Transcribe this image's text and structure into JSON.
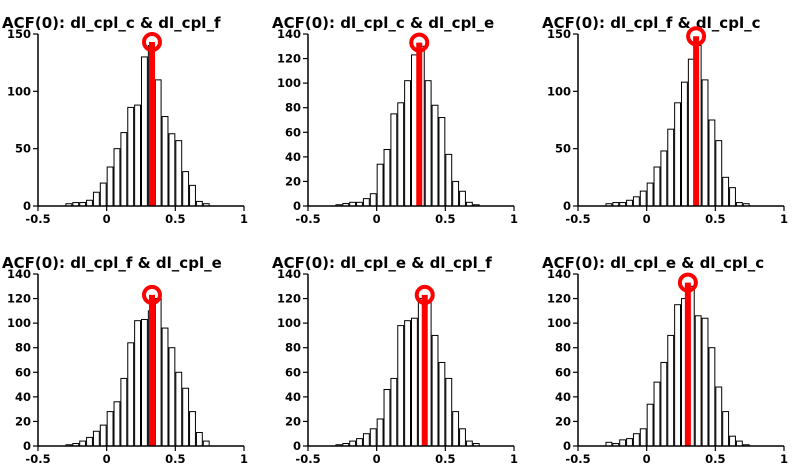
{
  "figure": {
    "colors": {
      "bars": "#ffffff",
      "bar_outline": "#000000",
      "marker": "#ff0000"
    }
  },
  "chart_data": [
    {
      "type": "bar",
      "title": "ACF(0): dl_cpl_c & dl_cpl_f",
      "xlim": [
        -0.5,
        1
      ],
      "ylim": [
        0,
        150
      ],
      "xticks": [
        "-0.5",
        "0",
        "0.5",
        "1"
      ],
      "yticks": [
        "0",
        "50",
        "100",
        "150"
      ],
      "bin_width": 0.05,
      "bin_centers": [
        -0.275,
        -0.225,
        -0.175,
        -0.125,
        -0.075,
        -0.025,
        0.025,
        0.075,
        0.125,
        0.175,
        0.225,
        0.275,
        0.325,
        0.375,
        0.425,
        0.475,
        0.525,
        0.575,
        0.625,
        0.675,
        0.725
      ],
      "values": [
        2,
        3,
        3,
        5,
        12,
        20,
        34,
        50,
        64,
        86,
        88,
        130,
        140,
        110,
        78,
        63,
        57,
        30,
        18,
        4,
        2
      ],
      "marker": {
        "x": 0.33,
        "y": 143
      }
    },
    {
      "type": "bar",
      "title": "ACF(0): dl_cpl_c & dl_cpl_e",
      "xlim": [
        -0.5,
        1
      ],
      "ylim": [
        0,
        140
      ],
      "xticks": [
        "-0.5",
        "0",
        "0.5",
        "1"
      ],
      "yticks": [
        "0",
        "20",
        "40",
        "60",
        "80",
        "100",
        "120",
        "140"
      ],
      "bin_width": 0.05,
      "bin_centers": [
        -0.275,
        -0.225,
        -0.175,
        -0.125,
        -0.075,
        -0.025,
        0.025,
        0.075,
        0.125,
        0.175,
        0.225,
        0.275,
        0.325,
        0.375,
        0.425,
        0.475,
        0.525,
        0.575,
        0.625,
        0.675,
        0.725
      ],
      "values": [
        1,
        2,
        3,
        3,
        6,
        10,
        34,
        46,
        75,
        84,
        102,
        123,
        130,
        102,
        82,
        72,
        42,
        20,
        12,
        3,
        1
      ],
      "marker": {
        "x": 0.31,
        "y": 133
      }
    },
    {
      "type": "bar",
      "title": "ACF(0): dl_cpl_f & dl_cpl_c",
      "xlim": [
        -0.5,
        1
      ],
      "ylim": [
        0,
        150
      ],
      "xticks": [
        "-0.5",
        "0",
        "0.5",
        "1"
      ],
      "yticks": [
        "0",
        "50",
        "100",
        "150"
      ],
      "bin_width": 0.05,
      "bin_centers": [
        -0.275,
        -0.225,
        -0.175,
        -0.125,
        -0.075,
        -0.025,
        0.025,
        0.075,
        0.125,
        0.175,
        0.225,
        0.275,
        0.325,
        0.375,
        0.425,
        0.475,
        0.525,
        0.575,
        0.625,
        0.675,
        0.725
      ],
      "values": [
        2,
        3,
        3,
        5,
        8,
        13,
        20,
        34,
        48,
        67,
        90,
        108,
        128,
        140,
        110,
        75,
        57,
        25,
        16,
        3,
        2
      ],
      "marker": {
        "x": 0.36,
        "y": 148
      }
    },
    {
      "type": "bar",
      "title": "ACF(0): dl_cpl_f & dl_cpl_e",
      "xlim": [
        -0.5,
        1
      ],
      "ylim": [
        0,
        140
      ],
      "xticks": [
        "-0.5",
        "0",
        "0.5",
        "1"
      ],
      "yticks": [
        "0",
        "20",
        "40",
        "60",
        "80",
        "100",
        "120",
        "140"
      ],
      "bin_width": 0.05,
      "bin_centers": [
        -0.275,
        -0.225,
        -0.175,
        -0.125,
        -0.075,
        -0.025,
        0.025,
        0.075,
        0.125,
        0.175,
        0.225,
        0.275,
        0.325,
        0.375,
        0.425,
        0.475,
        0.525,
        0.575,
        0.625,
        0.675,
        0.725
      ],
      "values": [
        1,
        2,
        4,
        7,
        12,
        17,
        28,
        36,
        55,
        84,
        102,
        103,
        110,
        120,
        96,
        80,
        60,
        47,
        28,
        11,
        4
      ],
      "marker": {
        "x": 0.33,
        "y": 123
      }
    },
    {
      "type": "bar",
      "title": "ACF(0): dl_cpl_e & dl_cpl_f",
      "xlim": [
        -0.5,
        1
      ],
      "ylim": [
        0,
        140
      ],
      "xticks": [
        "-0.5",
        "0",
        "0.5",
        "1"
      ],
      "yticks": [
        "0",
        "20",
        "40",
        "60",
        "80",
        "100",
        "120",
        "140"
      ],
      "bin_width": 0.05,
      "bin_centers": [
        -0.275,
        -0.225,
        -0.175,
        -0.125,
        -0.075,
        -0.025,
        0.025,
        0.075,
        0.125,
        0.175,
        0.225,
        0.275,
        0.325,
        0.375,
        0.425,
        0.475,
        0.525,
        0.575,
        0.625,
        0.675,
        0.725
      ],
      "values": [
        1,
        2,
        4,
        6,
        10,
        14,
        22,
        46,
        55,
        98,
        102,
        104,
        120,
        118,
        90,
        68,
        55,
        28,
        14,
        4,
        2
      ],
      "marker": {
        "x": 0.35,
        "y": 123
      }
    },
    {
      "type": "bar",
      "title": "ACF(0): dl_cpl_e & dl_cpl_c",
      "xlim": [
        -0.5,
        1
      ],
      "ylim": [
        0,
        140
      ],
      "xticks": [
        "-0.5",
        "0",
        "0.5",
        "1"
      ],
      "yticks": [
        "0",
        "20",
        "40",
        "60",
        "80",
        "100",
        "120",
        "140"
      ],
      "bin_width": 0.05,
      "bin_centers": [
        -0.275,
        -0.225,
        -0.175,
        -0.125,
        -0.075,
        -0.025,
        0.025,
        0.075,
        0.125,
        0.175,
        0.225,
        0.275,
        0.325,
        0.375,
        0.425,
        0.475,
        0.525,
        0.575,
        0.625,
        0.675,
        0.725
      ],
      "values": [
        3,
        2,
        5,
        6,
        10,
        14,
        34,
        52,
        68,
        90,
        115,
        120,
        130,
        106,
        104,
        80,
        48,
        28,
        8,
        4,
        1
      ],
      "marker": {
        "x": 0.3,
        "y": 133
      }
    }
  ]
}
